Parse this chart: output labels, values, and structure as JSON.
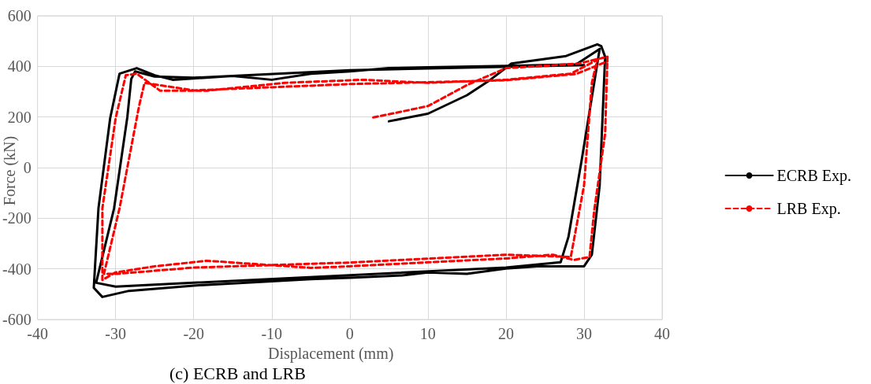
{
  "chart_data": {
    "type": "line",
    "title": "(c) ECRB and LRB",
    "xlabel": "Displacement (mm)",
    "ylabel": "Force (kN)",
    "xlim": [
      -40,
      40
    ],
    "xticks": [
      -40,
      -30,
      -20,
      -10,
      0,
      10,
      20,
      30,
      40
    ],
    "ylim": [
      -600,
      600
    ],
    "yticks": [
      -600,
      -400,
      -200,
      0,
      200,
      400,
      600
    ],
    "grid": true,
    "legend": "right",
    "marker": "none",
    "series": [
      {
        "name": "ECRB Exp.",
        "color": "#000000",
        "line_style": "solid",
        "x": [
          5,
          10,
          15,
          18,
          20.7,
          27.7,
          31.7,
          32.2,
          32.7,
          32,
          31,
          30,
          28.7,
          24,
          20,
          15,
          10,
          6.7,
          0,
          -5,
          -20,
          -28.3,
          -31.7,
          -32.8,
          -32.2,
          -30.7,
          -29.5,
          -27.3,
          -25,
          -22.7,
          -15,
          -10,
          -5,
          0,
          5,
          10,
          20,
          29,
          32,
          31.3,
          29.7,
          28,
          27,
          20,
          0,
          -20,
          -30,
          -32.5,
          -30.2,
          -28.5,
          -28,
          -27.5,
          -25,
          -20,
          0,
          30
        ],
        "values": [
          183,
          213,
          286,
          347,
          411,
          441,
          487,
          480,
          438,
          -70,
          -344,
          -390,
          -390,
          -390,
          -399,
          -420,
          -414,
          -426,
          -435,
          -441,
          -466,
          -487,
          -511,
          -475,
          -161,
          195,
          371,
          393,
          365,
          347,
          362,
          347,
          371,
          380,
          393,
          396,
          402,
          408,
          469,
          335,
          30,
          -274,
          -374,
          -395,
          -425,
          -455,
          -470,
          -455,
          -161,
          200,
          350,
          380,
          360,
          355,
          385,
          405
        ]
      },
      {
        "name": "LRB Exp.",
        "color": "#ff0000",
        "line_style": "dashed",
        "x": [
          3,
          10,
          15,
          20,
          29.3,
          33,
          32.7,
          31.3,
          30.7,
          28.7,
          26,
          20,
          10,
          0,
          -5,
          -18.3,
          -25,
          -30,
          -31.7,
          -31.7,
          -30,
          -28.7,
          -27.3,
          -24.3,
          -18.3,
          -8.3,
          1.7,
          10,
          20,
          28.3,
          31.7,
          31,
          30,
          28.3,
          20,
          0,
          -20,
          -30,
          -31.5,
          -29.5,
          -27,
          -26.3,
          -20,
          0,
          20,
          29,
          33
        ],
        "values": [
          198,
          243,
          326,
          393,
          411,
          438,
          134,
          -170,
          -353,
          -365,
          -344,
          -359,
          -374,
          -390,
          -396,
          -368,
          -390,
          -414,
          -444,
          -161,
          195,
          365,
          371,
          304,
          304,
          335,
          347,
          335,
          347,
          371,
          426,
          335,
          -70,
          -353,
          -344,
          -375,
          -395,
          -420,
          -420,
          -161,
          243,
          335,
          305,
          330,
          345,
          370,
          420
        ]
      }
    ]
  }
}
